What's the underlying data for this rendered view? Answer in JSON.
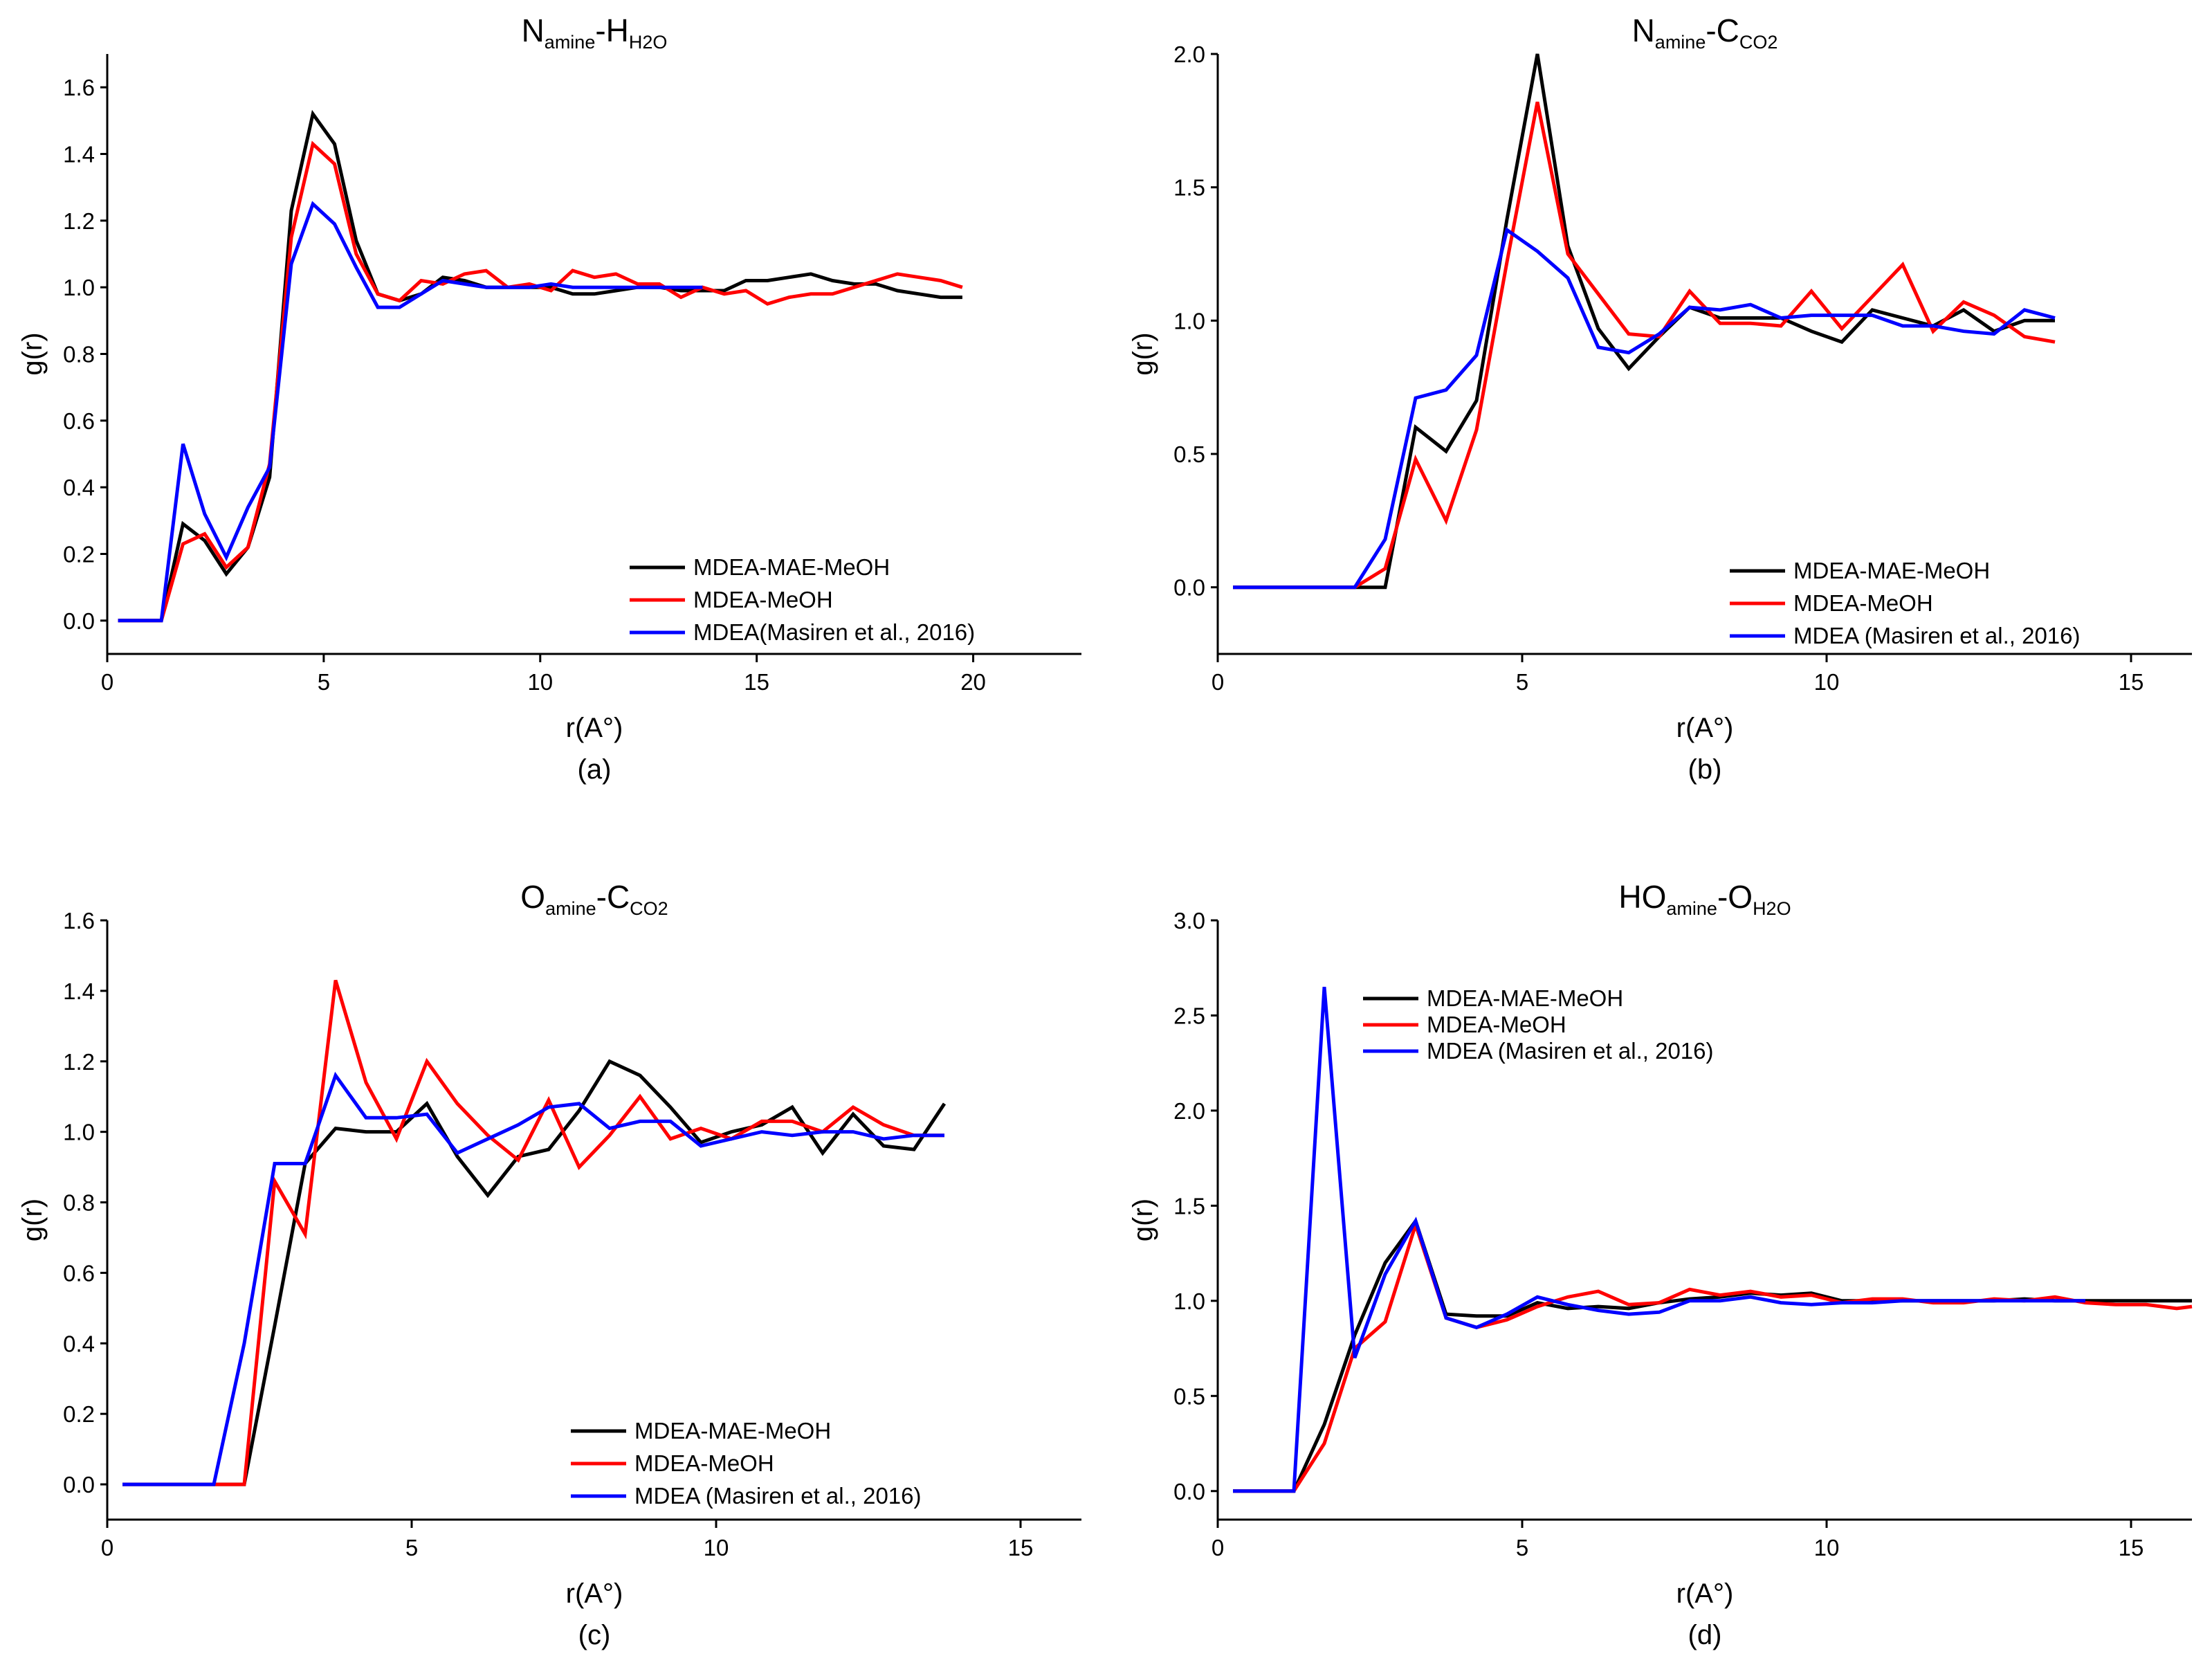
{
  "chart_data": [
    {
      "type": "line",
      "title": "N",
      "title_sub": "amine",
      "title_mid": "-H",
      "title_sub2": "H2O",
      "xlabel": "r(A°)",
      "ylabel": "g(r)",
      "caption": "(a)",
      "xlim": [
        0,
        22.5
      ],
      "ylim": [
        -0.1,
        1.7
      ],
      "xticks": [
        "0",
        "5",
        "10",
        "15",
        "20"
      ],
      "xtick_values": [
        0,
        5,
        10,
        15,
        20
      ],
      "yticks": [
        "0.0",
        "0.2",
        "0.4",
        "0.6",
        "0.8",
        "1.0",
        "1.2",
        "1.4",
        "1.6"
      ],
      "ytick_values": [
        0,
        0.2,
        0.4,
        0.6,
        0.8,
        1.0,
        1.2,
        1.4,
        1.6
      ],
      "legend_position": "lower-right",
      "series": [
        {
          "name": "MDEA-MAE-MeOH",
          "color": "#000000",
          "x": [
            0.25,
            0.75,
            1.25,
            1.75,
            2.25,
            2.75,
            3.25,
            3.75,
            4.25,
            4.75,
            5.25,
            5.75,
            6.25,
            6.75,
            7.25,
            7.75,
            8.25,
            8.75,
            9.25,
            9.75,
            10.25,
            10.75,
            11.25,
            11.75,
            12.25,
            12.75,
            13.25,
            13.75,
            14.25,
            14.75,
            15.25,
            15.75,
            16.25,
            16.75,
            17.25,
            17.75,
            18.25,
            18.75,
            19.25,
            19.75
          ],
          "y": [
            0,
            0,
            0,
            0.29,
            0.24,
            0.14,
            0.22,
            0.43,
            1.23,
            1.52,
            1.43,
            1.14,
            0.98,
            0.96,
            0.98,
            1.03,
            1.02,
            1.0,
            1.0,
            1.0,
            1.0,
            0.98,
            0.98,
            0.99,
            1.0,
            1.0,
            0.99,
            0.99,
            0.99,
            1.02,
            1.02,
            1.03,
            1.04,
            1.02,
            1.01,
            1.01,
            0.99,
            0.98,
            0.97,
            0.97
          ]
        },
        {
          "name": "MDEA-MeOH",
          "color": "#ff0000",
          "x": [
            0.25,
            0.75,
            1.25,
            1.75,
            2.25,
            2.75,
            3.25,
            3.75,
            4.25,
            4.75,
            5.25,
            5.75,
            6.25,
            6.75,
            7.25,
            7.75,
            8.25,
            8.75,
            9.25,
            9.75,
            10.25,
            10.75,
            11.25,
            11.75,
            12.25,
            12.75,
            13.25,
            13.75,
            14.25,
            14.75,
            15.25,
            15.75,
            16.25,
            16.75,
            17.25,
            17.75,
            18.25,
            18.75,
            19.25,
            19.75
          ],
          "y": [
            0,
            0,
            0,
            0.23,
            0.26,
            0.16,
            0.22,
            0.47,
            1.15,
            1.43,
            1.37,
            1.1,
            0.98,
            0.96,
            1.02,
            1.01,
            1.04,
            1.05,
            1.0,
            1.01,
            0.99,
            1.05,
            1.03,
            1.04,
            1.01,
            1.01,
            0.97,
            1.0,
            0.98,
            0.99,
            0.95,
            0.97,
            0.98,
            0.98,
            1.0,
            1.02,
            1.04,
            1.03,
            1.02,
            1.0
          ]
        },
        {
          "name": "MDEA(Masiren et al., 2016)",
          "color": "#0000ff",
          "x": [
            0.25,
            0.75,
            1.25,
            1.75,
            2.25,
            2.75,
            3.25,
            3.75,
            4.25,
            4.75,
            5.25,
            5.75,
            6.25,
            6.75,
            7.25,
            7.75,
            8.25,
            8.75,
            9.25,
            9.75,
            10.25,
            10.75,
            11.25,
            11.75,
            12.25,
            12.75,
            13.25,
            13.75
          ],
          "y": [
            0,
            0,
            0,
            0.53,
            0.32,
            0.19,
            0.34,
            0.46,
            1.07,
            1.25,
            1.19,
            1.06,
            0.94,
            0.94,
            0.98,
            1.02,
            1.01,
            1.0,
            1.0,
            1.0,
            1.01,
            1.0,
            1.0,
            1.0,
            1.0,
            1.0,
            1.0,
            1.0
          ]
        }
      ]
    },
    {
      "type": "line",
      "title": "N",
      "title_sub": "amine",
      "title_mid": "-C",
      "title_sub2": "CO2",
      "xlabel": "r(A°)",
      "ylabel": "g(r)",
      "caption": "(b)",
      "xlim": [
        0,
        16
      ],
      "ylim": [
        -0.25,
        2.0
      ],
      "xticks": [
        "0",
        "5",
        "10",
        "15"
      ],
      "xtick_values": [
        0,
        5,
        10,
        15
      ],
      "yticks": [
        "0.0",
        "0.5",
        "1.0",
        "1.5",
        "2.0"
      ],
      "ytick_values": [
        0,
        0.5,
        1.0,
        1.5,
        2.0
      ],
      "legend_position": "lower-right",
      "series": [
        {
          "name": "MDEA-MAE-MeOH",
          "color": "#000000",
          "x": [
            0.25,
            0.75,
            1.25,
            1.75,
            2.25,
            2.75,
            3.25,
            3.75,
            4.25,
            4.75,
            5.25,
            5.75,
            6.25,
            6.75,
            7.25,
            7.75,
            8.25,
            8.75,
            9.25,
            9.75,
            10.25,
            10.75,
            11.25,
            11.75,
            12.25,
            12.75,
            13.25,
            13.75
          ],
          "y": [
            0,
            0,
            0,
            0,
            0,
            0,
            0.6,
            0.51,
            0.7,
            1.38,
            2.0,
            1.28,
            0.97,
            0.82,
            0.94,
            1.05,
            1.01,
            1.01,
            1.01,
            0.96,
            0.92,
            1.04,
            1.01,
            0.98,
            1.04,
            0.96,
            1.0,
            1.0
          ]
        },
        {
          "name": "MDEA-MeOH",
          "color": "#ff0000",
          "x": [
            0.25,
            0.75,
            1.25,
            1.75,
            2.25,
            2.75,
            3.25,
            3.75,
            4.25,
            4.75,
            5.25,
            5.75,
            6.25,
            6.75,
            7.25,
            7.75,
            8.25,
            8.75,
            9.25,
            9.75,
            10.25,
            10.75,
            11.25,
            11.75,
            12.25,
            12.75,
            13.25,
            13.75
          ],
          "y": [
            0,
            0,
            0,
            0,
            0,
            0.07,
            0.48,
            0.25,
            0.59,
            1.22,
            1.82,
            1.25,
            1.1,
            0.95,
            0.94,
            1.11,
            0.99,
            0.99,
            0.98,
            1.11,
            0.97,
            1.09,
            1.21,
            0.96,
            1.07,
            1.02,
            0.94,
            0.92
          ]
        },
        {
          "name": "MDEA (Masiren et al., 2016)",
          "color": "#0000ff",
          "x": [
            0.25,
            0.75,
            1.25,
            1.75,
            2.25,
            2.75,
            3.25,
            3.75,
            4.25,
            4.75,
            5.25,
            5.75,
            6.25,
            6.75,
            7.25,
            7.75,
            8.25,
            8.75,
            9.25,
            9.75,
            10.25,
            10.75,
            11.25,
            11.75,
            12.25,
            12.75,
            13.25,
            13.75
          ],
          "y": [
            0,
            0,
            0,
            0,
            0,
            0.18,
            0.71,
            0.74,
            0.87,
            1.34,
            1.26,
            1.16,
            0.9,
            0.88,
            0.95,
            1.05,
            1.04,
            1.06,
            1.01,
            1.02,
            1.02,
            1.02,
            0.98,
            0.98,
            0.96,
            0.95,
            1.04,
            1.01
          ]
        }
      ]
    },
    {
      "type": "line",
      "title": "O",
      "title_sub": "amine",
      "title_mid": "-C",
      "title_sub2": "CO2",
      "xlabel": "r(A°)",
      "ylabel": "g(r)",
      "caption": "(c)",
      "xlim": [
        0,
        16
      ],
      "ylim": [
        -0.1,
        1.6
      ],
      "xticks": [
        "0",
        "5",
        "10",
        "15"
      ],
      "xtick_values": [
        0,
        5,
        10,
        15
      ],
      "yticks": [
        "0.0",
        "0.2",
        "0.4",
        "0.6",
        "0.8",
        "1.0",
        "1.2",
        "1.4",
        "1.6"
      ],
      "ytick_values": [
        0,
        0.2,
        0.4,
        0.6,
        0.8,
        1.0,
        1.2,
        1.4,
        1.6
      ],
      "legend_position": "lower-right",
      "series": [
        {
          "name": "MDEA-MAE-MeOH",
          "color": "#000000",
          "x": [
            0.25,
            0.75,
            1.25,
            1.75,
            2.25,
            2.75,
            3.25,
            3.75,
            4.25,
            4.75,
            5.25,
            5.75,
            6.25,
            6.75,
            7.25,
            7.75,
            8.25,
            8.75,
            9.25,
            9.75,
            10.25,
            10.75,
            11.25,
            11.75,
            12.25,
            12.75,
            13.25,
            13.75
          ],
          "y": [
            0,
            0,
            0,
            0,
            0,
            0.45,
            0.91,
            1.01,
            1.0,
            1.0,
            1.08,
            0.93,
            0.82,
            0.93,
            0.95,
            1.06,
            1.2,
            1.16,
            1.07,
            0.97,
            1.0,
            1.02,
            1.07,
            0.94,
            1.05,
            0.96,
            0.95,
            1.08
          ]
        },
        {
          "name": "MDEA-MeOH",
          "color": "#ff0000",
          "x": [
            0.25,
            0.75,
            1.25,
            1.75,
            2.25,
            2.75,
            3.25,
            3.75,
            4.25,
            4.75,
            5.25,
            5.75,
            6.25,
            6.75,
            7.25,
            7.75,
            8.25,
            8.75,
            9.25,
            9.75,
            10.25,
            10.75,
            11.25,
            11.75,
            12.25,
            12.75,
            13.25,
            13.75
          ],
          "y": [
            0,
            0,
            0,
            0,
            0,
            0.86,
            0.71,
            1.43,
            1.14,
            0.98,
            1.2,
            1.08,
            0.99,
            0.92,
            1.09,
            0.9,
            0.99,
            1.1,
            0.98,
            1.01,
            0.98,
            1.03,
            1.03,
            1.0,
            1.07,
            1.02,
            0.99,
            0.99
          ]
        },
        {
          "name": "MDEA (Masiren et al., 2016)",
          "color": "#0000ff",
          "x": [
            0.25,
            0.75,
            1.25,
            1.75,
            2.25,
            2.75,
            3.25,
            3.75,
            4.25,
            4.75,
            5.25,
            5.75,
            6.25,
            6.75,
            7.25,
            7.75,
            8.25,
            8.75,
            9.25,
            9.75,
            10.25,
            10.75,
            11.25,
            11.75,
            12.25,
            12.75,
            13.25,
            13.75
          ],
          "y": [
            0,
            0,
            0,
            0,
            0.4,
            0.91,
            0.91,
            1.16,
            1.04,
            1.04,
            1.05,
            0.94,
            0.98,
            1.02,
            1.07,
            1.08,
            1.01,
            1.03,
            1.03,
            0.96,
            0.98,
            1.0,
            0.99,
            1.0,
            1.0,
            0.98,
            0.99,
            0.99
          ]
        }
      ]
    },
    {
      "type": "line",
      "title": "HO",
      "title_sub": "amine",
      "title_mid": "-O",
      "title_sub2": "H2O",
      "xlabel": "r(A°)",
      "ylabel": "g(r)",
      "caption": "(d)",
      "xlim": [
        0,
        16
      ],
      "ylim": [
        -0.15,
        3.0
      ],
      "xticks": [
        "0",
        "5",
        "10",
        "15"
      ],
      "xtick_values": [
        0,
        5,
        10,
        15
      ],
      "yticks": [
        "0.0",
        "0.5",
        "1.0",
        "1.5",
        "2.0",
        "2.5",
        "3.0"
      ],
      "ytick_values": [
        0,
        0.5,
        1.0,
        1.5,
        2.0,
        2.5,
        3.0
      ],
      "legend_position": "upper-left",
      "series": [
        {
          "name": "MDEA-MAE-MeOH",
          "color": "#000000",
          "x": [
            0.25,
            0.75,
            1.25,
            1.75,
            2.25,
            2.75,
            3.25,
            3.75,
            4.25,
            4.75,
            5.25,
            5.75,
            6.25,
            6.75,
            7.25,
            7.75,
            8.25,
            8.75,
            9.25,
            9.75,
            10.25,
            10.75,
            11.25,
            11.75,
            12.25,
            12.75,
            13.25,
            13.75,
            14.25,
            14.75,
            15.25,
            15.75,
            16.0
          ],
          "y": [
            0,
            0,
            0,
            0.35,
            0.82,
            1.2,
            1.42,
            0.93,
            0.92,
            0.92,
            0.99,
            0.96,
            0.97,
            0.96,
            0.99,
            1.01,
            1.02,
            1.04,
            1.03,
            1.04,
            1.0,
            1.0,
            1.0,
            1.0,
            1.0,
            1.0,
            1.01,
            1.0,
            1.0,
            1.0,
            1.0,
            1.0,
            1.0
          ]
        },
        {
          "name": "MDEA-MeOH",
          "color": "#ff0000",
          "x": [
            0.25,
            0.75,
            1.25,
            1.75,
            2.25,
            2.75,
            3.25,
            3.75,
            4.25,
            4.75,
            5.25,
            5.75,
            6.25,
            6.75,
            7.25,
            7.75,
            8.25,
            8.75,
            9.25,
            9.75,
            10.25,
            10.75,
            11.25,
            11.75,
            12.25,
            12.75,
            13.25,
            13.75,
            14.25,
            14.75,
            15.25,
            15.75,
            16.0
          ],
          "y": [
            0,
            0,
            0,
            0.25,
            0.75,
            0.89,
            1.4,
            0.91,
            0.86,
            0.9,
            0.97,
            1.02,
            1.05,
            0.98,
            0.99,
            1.06,
            1.03,
            1.05,
            1.02,
            1.03,
            0.99,
            1.01,
            1.01,
            0.99,
            0.99,
            1.01,
            1.0,
            1.02,
            0.99,
            0.98,
            0.98,
            0.96,
            0.97
          ]
        },
        {
          "name": "MDEA (Masiren et al., 2016)",
          "color": "#0000ff",
          "x": [
            0.25,
            0.75,
            1.25,
            1.75,
            2.25,
            2.75,
            3.25,
            3.75,
            4.25,
            4.75,
            5.25,
            5.75,
            6.25,
            6.75,
            7.25,
            7.75,
            8.25,
            8.75,
            9.25,
            9.75,
            10.25,
            10.75,
            11.25,
            11.75,
            12.25,
            12.75,
            13.25,
            13.75,
            14.25
          ],
          "y": [
            0,
            0,
            0,
            2.65,
            0.7,
            1.14,
            1.42,
            0.91,
            0.86,
            0.93,
            1.02,
            0.98,
            0.95,
            0.93,
            0.94,
            1.0,
            1.0,
            1.02,
            0.99,
            0.98,
            0.99,
            0.99,
            1.0,
            1.0,
            1.0,
            1.0,
            1.0,
            1.0,
            1.0
          ]
        }
      ]
    }
  ]
}
